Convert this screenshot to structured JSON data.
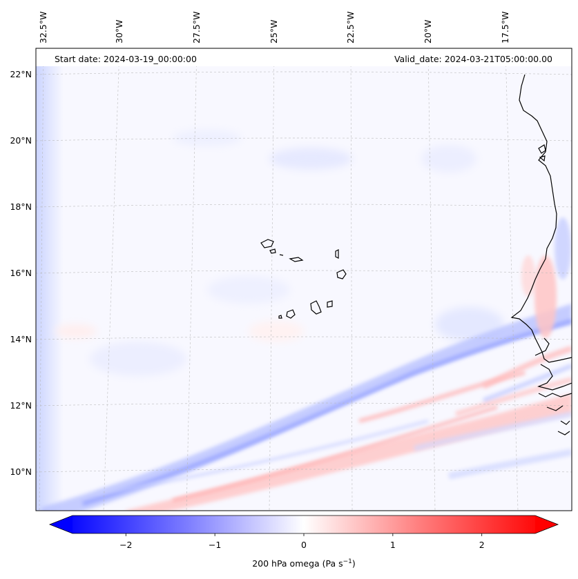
{
  "map": {
    "start_label": "Start date: 2024-03-19_00:00:00",
    "valid_label": "Valid_date: 2024-03-21T05:00:00.00",
    "lon_labels": [
      "32.5°W",
      "30°W",
      "27.5°W",
      "25°W",
      "22.5°W",
      "20°W",
      "17.5°W"
    ],
    "lat_labels": [
      "22°N",
      "20°N",
      "18°N",
      "16°N",
      "14°N",
      "12°N",
      "10°N"
    ],
    "region": "Cabo Verde and West African coast",
    "lon_range": [
      -33,
      -16
    ],
    "lat_range": [
      9,
      23
    ]
  },
  "colorbar": {
    "label_main": "200 hPa omega (Pa s",
    "label_sup": "−1",
    "label_end": ")",
    "ticks": [
      "−2",
      "−1",
      "0",
      "1",
      "2"
    ],
    "tick_values": [
      -2,
      -1,
      0,
      1,
      2
    ],
    "range": [
      -2.6,
      2.6
    ],
    "extend": "both",
    "colormap": "bwr",
    "negative_color": "#0000ff",
    "neutral_color": "#ffffff",
    "positive_color": "#ff0000"
  }
}
